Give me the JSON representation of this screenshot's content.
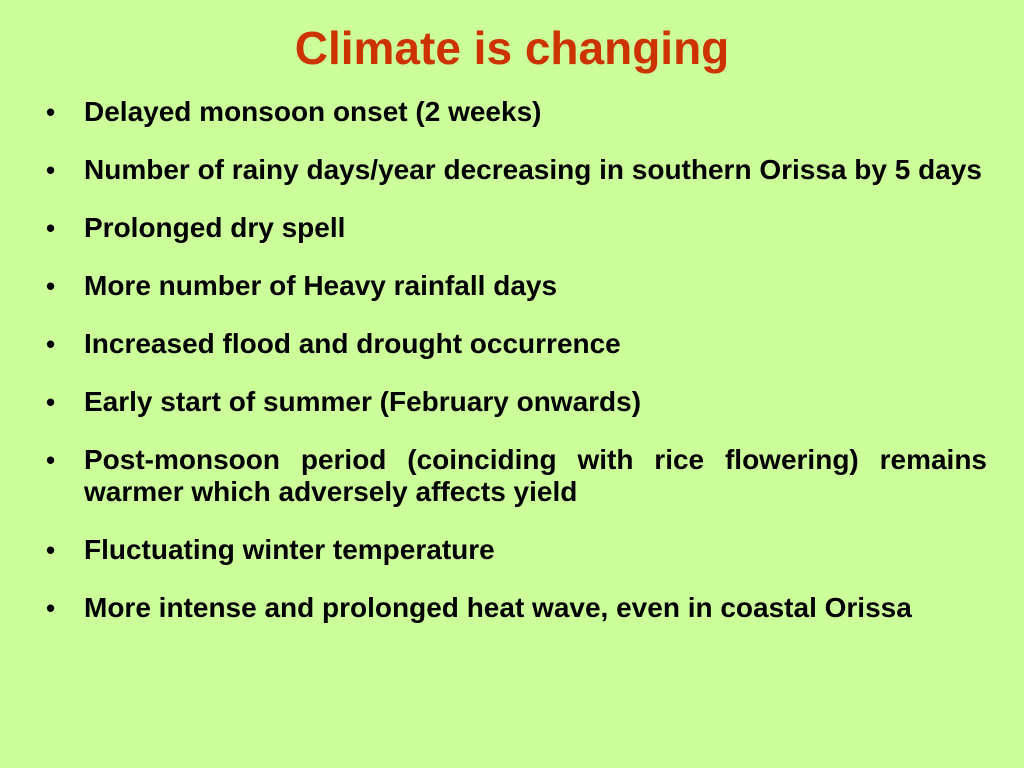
{
  "slide": {
    "title": "Climate is changing",
    "title_color": "#cc3300",
    "background_color": "#ccff99",
    "bullets": [
      "Delayed monsoon onset (2 weeks)",
      "Number of rainy days/year decreasing in southern Orissa by 5 days",
      "Prolonged dry spell",
      "More number of Heavy rainfall days",
      "Increased flood and drought occurrence",
      "Early start of summer (February onwards)",
      "Post-monsoon period (coinciding with rice flowering) remains warmer which adversely affects yield",
      "Fluctuating winter temperature",
      "More intense and prolonged heat wave, even in coastal Orissa"
    ]
  }
}
